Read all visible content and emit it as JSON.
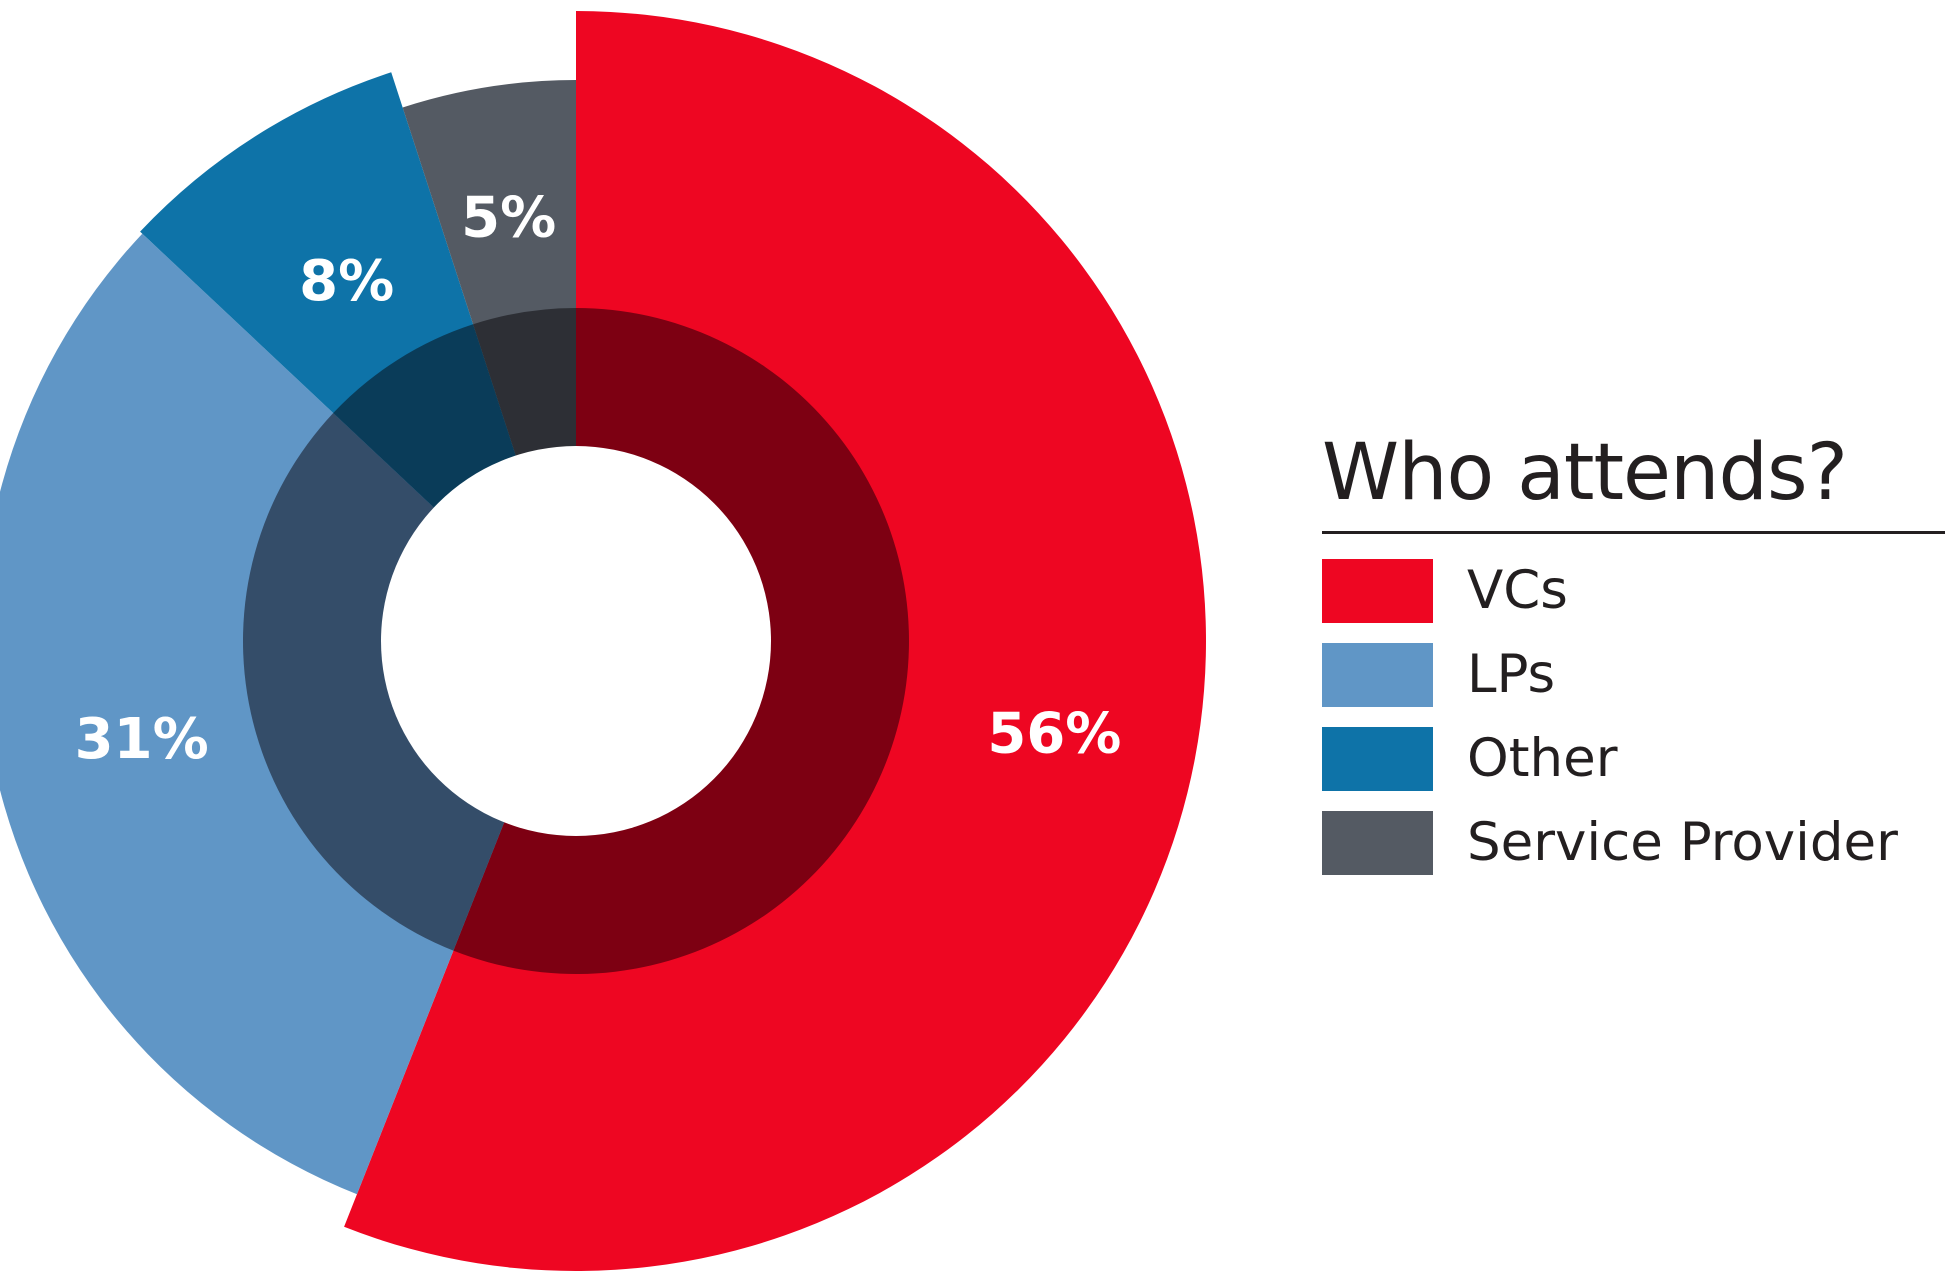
{
  "chart_data": {
    "type": "pie",
    "title": "Who attends?",
    "categories": [
      "VCs",
      "LPs",
      "Other",
      "Service Provider"
    ],
    "values": [
      56,
      31,
      8,
      5
    ],
    "value_labels": [
      "56%",
      "31%",
      "8%",
      "5%"
    ],
    "colors": [
      "#ee0622",
      "#6096c6",
      "#0e73a8",
      "#545a63"
    ],
    "inner_colors": [
      "#7d0012",
      "#344d69",
      "#0a3c59",
      "#2d2f35"
    ],
    "label_color": "#ffffff",
    "legend_position": "right",
    "order": "clockwise from 12 o'clock"
  }
}
